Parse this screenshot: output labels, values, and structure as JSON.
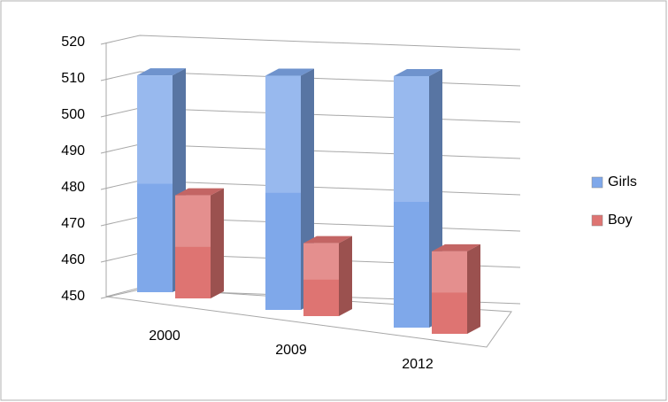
{
  "chart_data": {
    "type": "bar3d",
    "categories": [
      "2000",
      "2009",
      "2012"
    ],
    "series": [
      {
        "name": "Girls",
        "color": "#7fa8ea",
        "values": [
          511,
          511,
          511
        ]
      },
      {
        "name": "Boy",
        "color": "#de7472",
        "values": [
          479,
          469,
          470
        ]
      }
    ],
    "ylim": [
      450,
      520
    ],
    "yticks": [
      450,
      460,
      470,
      480,
      490,
      500,
      510,
      520
    ],
    "grid": true,
    "legend": "right"
  }
}
